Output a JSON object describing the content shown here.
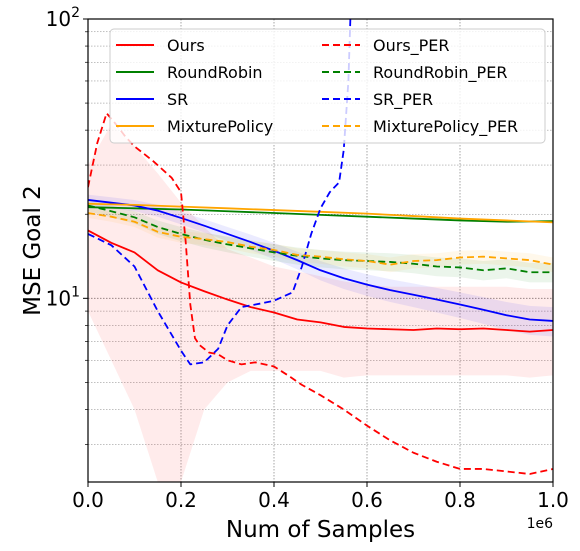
{
  "chart_data": {
    "type": "line",
    "title": "",
    "xlabel": "Num of Samples",
    "ylabel": "MSE Goal 2",
    "x_offset_label": "1e6",
    "xlim": [
      0,
      1.0
    ],
    "ylim": [
      2.2,
      100
    ],
    "yscale": "log",
    "x_ticks": [
      0.0,
      0.2,
      0.4,
      0.6,
      0.8,
      1.0
    ],
    "x_tick_labels": [
      "0.0",
      "0.2",
      "0.4",
      "0.6",
      "0.8",
      "1.0"
    ],
    "y_ticks": [
      10,
      100
    ],
    "y_tick_base": "10",
    "y_tick_exponents": [
      "1",
      "2"
    ],
    "grid": "dotted",
    "legend_position": "top",
    "legend_columns": 2,
    "series": [
      {
        "name": "Ours",
        "color": "#ff0000",
        "dash": "solid",
        "x": [
          0,
          0.05,
          0.1,
          0.15,
          0.2,
          0.25,
          0.3,
          0.35,
          0.4,
          0.45,
          0.5,
          0.55,
          0.6,
          0.65,
          0.7,
          0.75,
          0.8,
          0.85,
          0.9,
          0.95,
          1.0
        ],
        "y": [
          17.5,
          15.8,
          14.6,
          12.6,
          11.4,
          10.6,
          9.9,
          9.3,
          8.9,
          8.4,
          8.2,
          7.9,
          7.8,
          7.75,
          7.7,
          7.8,
          7.75,
          7.8,
          7.7,
          7.6,
          7.7
        ],
        "band_low": [
          9,
          6,
          4,
          2.2,
          2.2,
          4,
          5,
          5.5,
          5.5,
          5.5,
          5.5,
          5.2,
          5.3,
          5.3,
          5.3,
          5.3,
          5.3,
          5.3,
          5.3,
          5.2,
          5.3
        ],
        "band_high": [
          30,
          42,
          35,
          28,
          22,
          18,
          15,
          14,
          13,
          12.5,
          12,
          11.5,
          11.2,
          11,
          11,
          11,
          11,
          11,
          11,
          10.8,
          10.8
        ]
      },
      {
        "name": "RoundRobin",
        "color": "#008000",
        "dash": "solid",
        "x": [
          0,
          0.1,
          0.2,
          0.3,
          0.4,
          0.5,
          0.6,
          0.7,
          0.8,
          0.9,
          1.0
        ],
        "y": [
          21.2,
          21.0,
          20.8,
          20.5,
          20.2,
          19.9,
          19.6,
          19.3,
          19.0,
          18.8,
          18.9
        ]
      },
      {
        "name": "SR",
        "color": "#0000ff",
        "dash": "solid",
        "x": [
          0,
          0.05,
          0.1,
          0.15,
          0.2,
          0.25,
          0.3,
          0.35,
          0.4,
          0.45,
          0.5,
          0.55,
          0.6,
          0.65,
          0.7,
          0.75,
          0.8,
          0.85,
          0.9,
          0.95,
          1.0
        ],
        "y": [
          22.5,
          22.0,
          21.5,
          20.6,
          19.4,
          18.2,
          17.0,
          15.9,
          14.8,
          13.7,
          12.6,
          11.8,
          11.2,
          10.7,
          10.3,
          9.9,
          9.5,
          9.1,
          8.7,
          8.4,
          8.3
        ],
        "band_low": [
          21.5,
          21.0,
          20.5,
          19.6,
          18.4,
          17.2,
          16.0,
          14.9,
          13.8,
          12.7,
          11.6,
          10.8,
          10.2,
          9.7,
          9.3,
          8.9,
          8.5,
          8.1,
          7.7,
          7.4,
          7.3
        ],
        "band_high": [
          23.5,
          23.0,
          22.5,
          21.6,
          20.4,
          19.2,
          18.0,
          16.9,
          15.8,
          14.7,
          13.6,
          12.8,
          12.2,
          11.7,
          11.3,
          10.9,
          10.5,
          10.1,
          9.7,
          9.4,
          9.3
        ]
      },
      {
        "name": "MixturePolicy",
        "color": "#ffa500",
        "dash": "solid",
        "x": [
          0,
          0.1,
          0.2,
          0.3,
          0.4,
          0.5,
          0.6,
          0.7,
          0.8,
          0.9,
          1.0
        ],
        "y": [
          21.8,
          21.6,
          21.3,
          21.0,
          20.7,
          20.4,
          20.1,
          19.7,
          19.3,
          19.0,
          18.7
        ]
      },
      {
        "name": "Ours_PER",
        "color": "#ff0000",
        "dash": "dashed",
        "x": [
          0,
          0.02,
          0.04,
          0.06,
          0.08,
          0.1,
          0.14,
          0.18,
          0.2,
          0.21,
          0.22,
          0.23,
          0.24,
          0.26,
          0.28,
          0.3,
          0.33,
          0.36,
          0.4,
          0.43,
          0.46,
          0.5,
          0.55,
          0.6,
          0.65,
          0.7,
          0.75,
          0.8,
          0.85,
          0.9,
          0.95,
          1.0
        ],
        "y": [
          25,
          36,
          46,
          42,
          38,
          35,
          31,
          27,
          24,
          16,
          9.5,
          7.2,
          6.8,
          6.4,
          6.3,
          6.0,
          5.8,
          5.9,
          5.7,
          5.3,
          4.9,
          4.5,
          4.0,
          3.5,
          3.1,
          2.8,
          2.6,
          2.45,
          2.45,
          2.4,
          2.35,
          2.45
        ]
      },
      {
        "name": "RoundRobin_PER",
        "color": "#008000",
        "dash": "dashed",
        "x": [
          0,
          0.05,
          0.1,
          0.15,
          0.2,
          0.25,
          0.3,
          0.35,
          0.4,
          0.45,
          0.5,
          0.55,
          0.6,
          0.65,
          0.7,
          0.75,
          0.8,
          0.85,
          0.9,
          0.95,
          1.0
        ],
        "y": [
          21.5,
          20.5,
          19.5,
          18.0,
          17.0,
          16.2,
          15.6,
          15.1,
          14.6,
          14.2,
          13.9,
          13.7,
          13.6,
          13.5,
          13.3,
          13.0,
          12.9,
          12.6,
          12.8,
          12.4,
          12.4
        ],
        "band_low": [
          20.5,
          19.5,
          18.5,
          17.0,
          16.0,
          15.2,
          14.6,
          14.1,
          13.6,
          13.2,
          12.9,
          12.7,
          12.6,
          12.5,
          12.3,
          12.0,
          11.9,
          11.6,
          11.8,
          11.4,
          11.4
        ],
        "band_high": [
          22.5,
          21.5,
          20.5,
          19.0,
          18.0,
          17.2,
          16.6,
          16.1,
          15.6,
          15.2,
          14.9,
          14.7,
          14.6,
          14.5,
          14.3,
          14.0,
          13.9,
          13.6,
          13.8,
          13.4,
          13.4
        ]
      },
      {
        "name": "SR_PER",
        "color": "#0000ff",
        "dash": "dashed",
        "x": [
          0,
          0.05,
          0.1,
          0.15,
          0.2,
          0.22,
          0.25,
          0.28,
          0.3,
          0.33,
          0.36,
          0.4,
          0.44,
          0.46,
          0.48,
          0.5,
          0.52,
          0.54,
          0.55,
          0.56,
          0.565
        ],
        "y": [
          17.0,
          15.5,
          13.0,
          9.0,
          6.5,
          5.8,
          5.9,
          6.6,
          8.0,
          9.3,
          9.5,
          9.8,
          10.5,
          13.0,
          17.0,
          21.0,
          24.0,
          26.0,
          34.0,
          60.0,
          110.0
        ]
      },
      {
        "name": "MixturePolicy_PER",
        "color": "#ffa500",
        "dash": "dashed",
        "x": [
          0,
          0.05,
          0.1,
          0.15,
          0.2,
          0.25,
          0.3,
          0.35,
          0.4,
          0.45,
          0.5,
          0.55,
          0.6,
          0.65,
          0.7,
          0.75,
          0.8,
          0.85,
          0.9,
          0.95,
          1.0
        ],
        "y": [
          20.2,
          19.6,
          18.8,
          17.3,
          16.6,
          16.3,
          15.9,
          15.3,
          14.9,
          14.3,
          14.1,
          13.8,
          13.6,
          13.2,
          13.6,
          13.7,
          14.0,
          14.1,
          13.9,
          13.7,
          13.2
        ],
        "band_low": [
          19.4,
          18.8,
          18.0,
          16.5,
          15.8,
          15.5,
          15.1,
          14.5,
          14.1,
          13.5,
          13.3,
          13.0,
          12.8,
          12.4,
          12.8,
          12.9,
          13.2,
          13.3,
          13.1,
          12.9,
          12.4
        ],
        "band_high": [
          21.0,
          20.4,
          19.6,
          18.1,
          17.4,
          17.1,
          16.7,
          16.1,
          15.7,
          15.1,
          14.9,
          14.6,
          14.4,
          14.0,
          14.4,
          14.5,
          14.8,
          14.9,
          14.7,
          14.5,
          14.0
        ]
      }
    ]
  }
}
